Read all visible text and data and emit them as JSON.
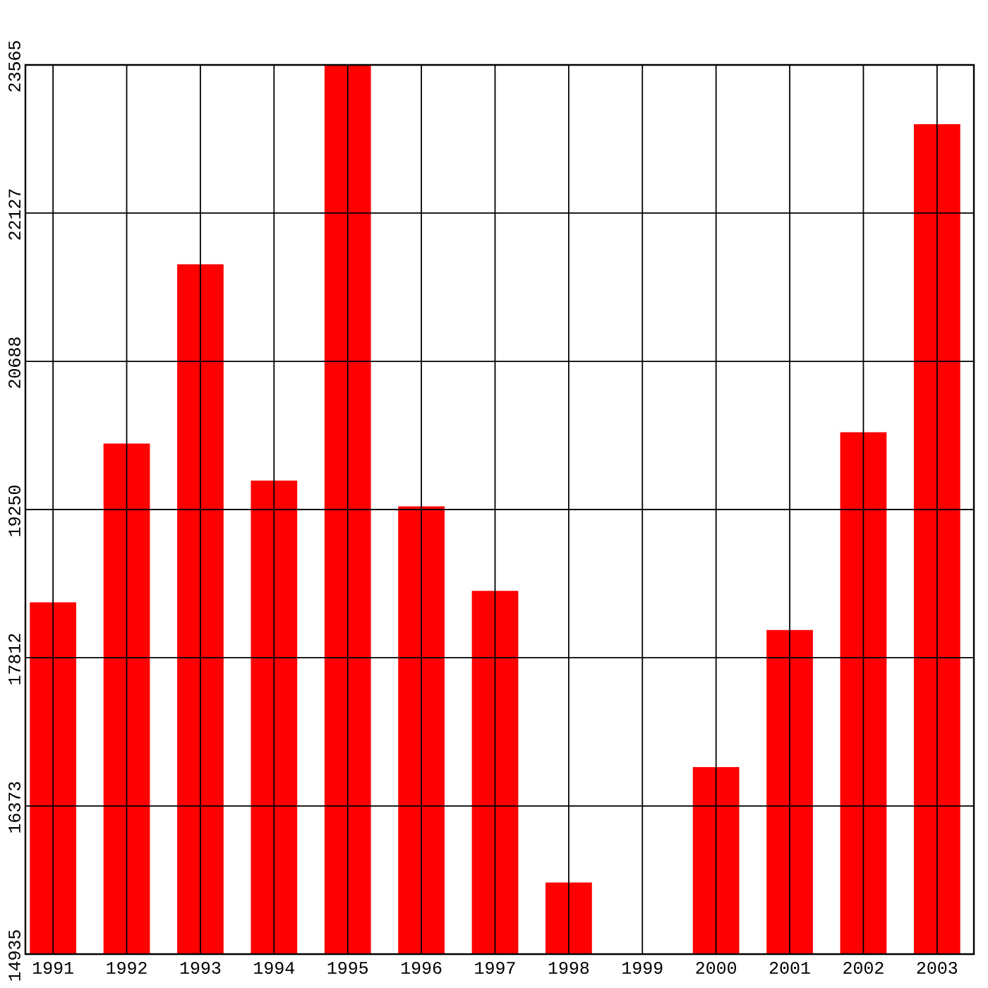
{
  "chart_data": {
    "type": "bar",
    "categories": [
      "1991",
      "1992",
      "1993",
      "1994",
      "1995",
      "1996",
      "1997",
      "1998",
      "1999",
      "2000",
      "2001",
      "2002",
      "2003"
    ],
    "values": [
      18350,
      19890,
      21630,
      19530,
      23565,
      19280,
      18460,
      15630,
      null,
      16750,
      18080,
      20000,
      22990
    ],
    "color": "#ff0000",
    "ylim": [
      14935,
      23565
    ],
    "yticks": [
      14935,
      16373,
      17812,
      19250,
      20688,
      22127,
      23565
    ],
    "grid": true
  }
}
